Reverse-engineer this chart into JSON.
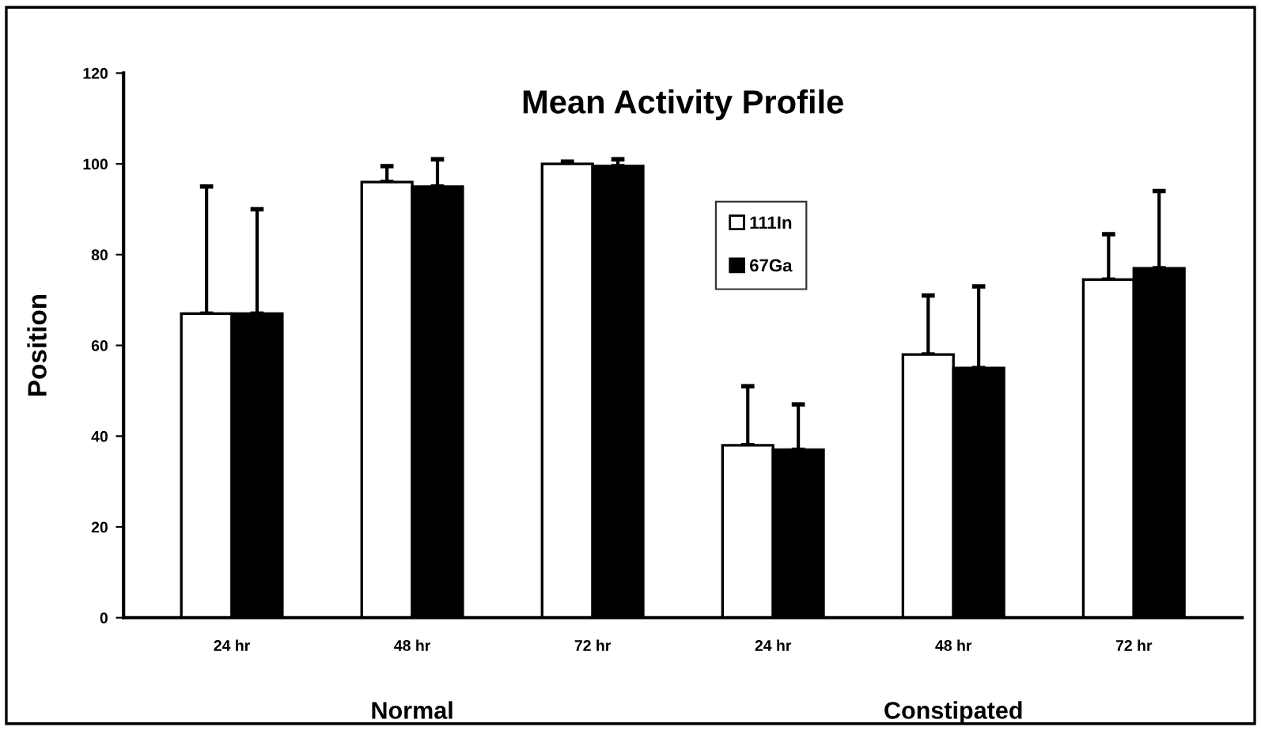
{
  "chart_data": {
    "type": "bar",
    "title": "Mean Activity Profile",
    "ylabel": "Position",
    "categories": [
      "24 hr",
      "48 hr",
      "72 hr",
      "24 hr",
      "48 hr",
      "72 hr"
    ],
    "series": [
      {
        "name": "111In",
        "color": "#ffffff",
        "values": [
          67,
          96,
          100,
          38,
          58,
          74.5
        ],
        "errors": [
          [
            67,
            95
          ],
          [
            96,
            99.5
          ],
          [
            100,
            100.5
          ],
          [
            38,
            51
          ],
          [
            58,
            71
          ],
          [
            74.5,
            84.5
          ]
        ]
      },
      {
        "name": "67Ga",
        "color": "#000000",
        "values": [
          67,
          95,
          99.5,
          37,
          55,
          77
        ],
        "errors": [
          [
            67,
            90
          ],
          [
            95,
            101
          ],
          [
            99.5,
            101
          ],
          [
            37,
            47
          ],
          [
            55,
            73
          ],
          [
            77,
            94
          ]
        ]
      }
    ],
    "annotations": [
      "Normal",
      "Constipated"
    ],
    "ylim": [
      0,
      120
    ],
    "yticks": [
      0,
      20,
      40,
      60,
      80,
      100,
      120
    ],
    "grid": false,
    "legend": "top"
  }
}
